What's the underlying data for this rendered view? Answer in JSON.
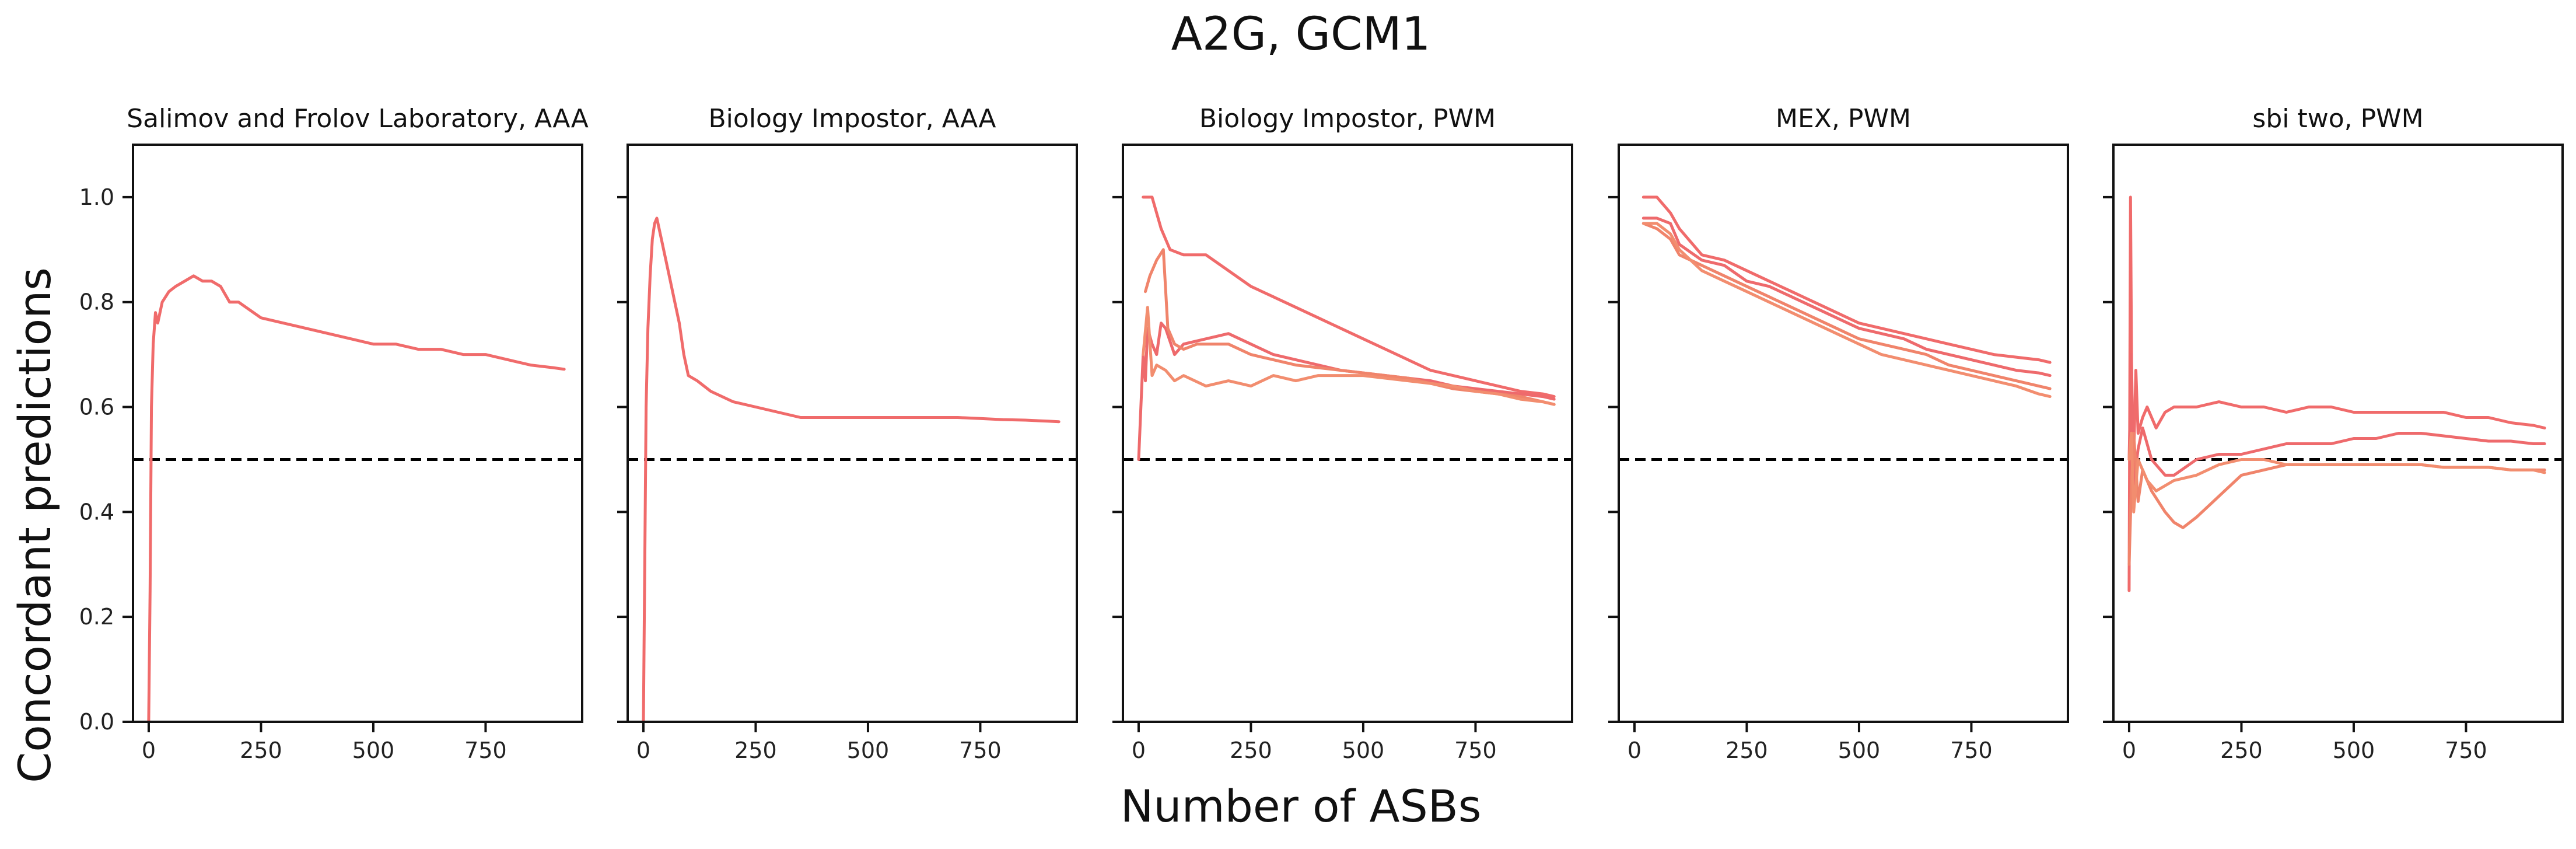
{
  "figure": {
    "title": "A2G, GCM1",
    "xlabel": "Number of ASBs",
    "ylabel": "Concordant predictions"
  },
  "colors": {
    "series": [
      "#f06b6b",
      "#ee6a6c",
      "#f0846b",
      "#f28d6f"
    ],
    "reference_line": "#000000",
    "frame": "#111111"
  },
  "chart_data": [
    {
      "type": "line",
      "title": "Salimov and Frolov Laboratory, AAA",
      "xlim": [
        -35,
        965
      ],
      "ylim": [
        0.0,
        1.1
      ],
      "xticks": [
        0,
        250,
        500,
        750
      ],
      "yticks": [
        0.0,
        0.2,
        0.4,
        0.6,
        0.8,
        1.0
      ],
      "reference_line": 0.5,
      "series": [
        {
          "x": [
            0,
            3,
            6,
            10,
            15,
            20,
            30,
            45,
            60,
            80,
            100,
            120,
            140,
            160,
            180,
            200,
            250,
            300,
            350,
            400,
            450,
            500,
            550,
            600,
            650,
            700,
            750,
            800,
            850,
            900,
            925
          ],
          "y": [
            0.0,
            0.25,
            0.6,
            0.72,
            0.78,
            0.76,
            0.8,
            0.82,
            0.83,
            0.84,
            0.85,
            0.84,
            0.84,
            0.83,
            0.8,
            0.8,
            0.77,
            0.76,
            0.75,
            0.74,
            0.73,
            0.72,
            0.72,
            0.71,
            0.71,
            0.7,
            0.7,
            0.69,
            0.68,
            0.675,
            0.672
          ]
        }
      ]
    },
    {
      "type": "line",
      "title": "Biology Impostor, AAA",
      "xlim": [
        -35,
        965
      ],
      "ylim": [
        0.0,
        1.1
      ],
      "xticks": [
        0,
        250,
        500,
        750
      ],
      "yticks": [
        0.0,
        0.2,
        0.4,
        0.6,
        0.8,
        1.0
      ],
      "reference_line": 0.5,
      "series": [
        {
          "x": [
            0,
            3,
            6,
            10,
            15,
            20,
            25,
            30,
            40,
            50,
            60,
            70,
            80,
            90,
            100,
            120,
            150,
            200,
            250,
            300,
            350,
            400,
            450,
            500,
            550,
            600,
            650,
            700,
            750,
            800,
            850,
            900,
            925
          ],
          "y": [
            0.0,
            0.3,
            0.6,
            0.75,
            0.85,
            0.92,
            0.95,
            0.96,
            0.92,
            0.88,
            0.84,
            0.8,
            0.76,
            0.7,
            0.66,
            0.65,
            0.63,
            0.61,
            0.6,
            0.59,
            0.58,
            0.58,
            0.58,
            0.58,
            0.58,
            0.58,
            0.58,
            0.58,
            0.578,
            0.576,
            0.575,
            0.573,
            0.572
          ]
        }
      ]
    },
    {
      "type": "line",
      "title": "Biology Impostor, PWM",
      "xlim": [
        -35,
        965
      ],
      "ylim": [
        0.0,
        1.1
      ],
      "xticks": [
        0,
        250,
        500,
        750
      ],
      "yticks": [
        0.0,
        0.2,
        0.4,
        0.6,
        0.8,
        1.0
      ],
      "reference_line": 0.5,
      "series": [
        {
          "x": [
            10,
            30,
            50,
            70,
            100,
            150,
            200,
            250,
            300,
            350,
            400,
            450,
            500,
            550,
            600,
            650,
            700,
            750,
            800,
            850,
            900,
            925
          ],
          "y": [
            1.0,
            1.0,
            0.94,
            0.9,
            0.89,
            0.89,
            0.86,
            0.83,
            0.81,
            0.79,
            0.77,
            0.75,
            0.73,
            0.71,
            0.69,
            0.67,
            0.66,
            0.65,
            0.64,
            0.63,
            0.625,
            0.62
          ]
        },
        {
          "x": [
            0,
            5,
            10,
            15,
            20,
            30,
            40,
            50,
            60,
            80,
            100,
            150,
            200,
            250,
            300,
            350,
            400,
            450,
            500,
            550,
            600,
            650,
            700,
            750,
            800,
            850,
            900,
            925
          ],
          "y": [
            0.5,
            0.6,
            0.7,
            0.65,
            0.75,
            0.72,
            0.7,
            0.76,
            0.75,
            0.7,
            0.72,
            0.73,
            0.74,
            0.72,
            0.7,
            0.69,
            0.68,
            0.67,
            0.665,
            0.66,
            0.655,
            0.65,
            0.64,
            0.635,
            0.63,
            0.625,
            0.62,
            0.615
          ]
        },
        {
          "x": [
            15,
            25,
            40,
            55,
            65,
            80,
            100,
            130,
            160,
            200,
            250,
            300,
            350,
            400,
            450,
            500,
            550,
            600,
            650,
            700,
            750,
            800,
            850,
            900,
            925
          ],
          "y": [
            0.82,
            0.85,
            0.88,
            0.9,
            0.75,
            0.72,
            0.71,
            0.72,
            0.72,
            0.72,
            0.7,
            0.69,
            0.68,
            0.675,
            0.67,
            0.665,
            0.66,
            0.655,
            0.645,
            0.635,
            0.63,
            0.625,
            0.62,
            0.61,
            0.605
          ]
        },
        {
          "x": [
            10,
            20,
            30,
            40,
            60,
            80,
            100,
            150,
            200,
            250,
            300,
            350,
            400,
            450,
            500,
            550,
            600,
            650,
            700,
            750,
            800,
            850,
            900,
            925
          ],
          "y": [
            0.7,
            0.79,
            0.66,
            0.68,
            0.67,
            0.65,
            0.66,
            0.64,
            0.65,
            0.64,
            0.66,
            0.65,
            0.66,
            0.66,
            0.66,
            0.655,
            0.65,
            0.645,
            0.64,
            0.63,
            0.625,
            0.615,
            0.61,
            0.605
          ]
        }
      ]
    },
    {
      "type": "line",
      "title": "MEX, PWM",
      "xlim": [
        -35,
        965
      ],
      "ylim": [
        0.0,
        1.1
      ],
      "xticks": [
        0,
        250,
        500,
        750
      ],
      "yticks": [
        0.0,
        0.2,
        0.4,
        0.6,
        0.8,
        1.0
      ],
      "reference_line": 0.5,
      "series": [
        {
          "x": [
            20,
            50,
            80,
            100,
            150,
            200,
            250,
            300,
            350,
            400,
            450,
            500,
            550,
            600,
            650,
            700,
            750,
            800,
            850,
            900,
            925
          ],
          "y": [
            1.0,
            1.0,
            0.97,
            0.94,
            0.89,
            0.88,
            0.86,
            0.84,
            0.82,
            0.8,
            0.78,
            0.76,
            0.75,
            0.74,
            0.73,
            0.72,
            0.71,
            0.7,
            0.695,
            0.69,
            0.685
          ]
        },
        {
          "x": [
            20,
            50,
            80,
            100,
            150,
            200,
            250,
            300,
            350,
            400,
            450,
            500,
            550,
            600,
            650,
            700,
            750,
            800,
            850,
            900,
            925
          ],
          "y": [
            0.96,
            0.96,
            0.95,
            0.91,
            0.88,
            0.87,
            0.84,
            0.83,
            0.81,
            0.79,
            0.77,
            0.75,
            0.74,
            0.73,
            0.71,
            0.7,
            0.69,
            0.68,
            0.67,
            0.665,
            0.66
          ]
        },
        {
          "x": [
            20,
            50,
            80,
            100,
            150,
            200,
            250,
            300,
            350,
            400,
            450,
            500,
            550,
            600,
            650,
            700,
            750,
            800,
            850,
            900,
            925
          ],
          "y": [
            0.95,
            0.94,
            0.92,
            0.89,
            0.87,
            0.85,
            0.83,
            0.81,
            0.79,
            0.77,
            0.75,
            0.73,
            0.72,
            0.71,
            0.7,
            0.68,
            0.67,
            0.66,
            0.65,
            0.64,
            0.635
          ]
        },
        {
          "x": [
            20,
            50,
            80,
            100,
            150,
            200,
            250,
            300,
            350,
            400,
            450,
            500,
            550,
            600,
            650,
            700,
            750,
            800,
            850,
            900,
            925
          ],
          "y": [
            0.95,
            0.95,
            0.93,
            0.9,
            0.86,
            0.84,
            0.82,
            0.8,
            0.78,
            0.76,
            0.74,
            0.72,
            0.7,
            0.69,
            0.68,
            0.67,
            0.66,
            0.65,
            0.64,
            0.625,
            0.62
          ]
        }
      ]
    },
    {
      "type": "line",
      "title": "sbi two, PWM",
      "xlim": [
        -35,
        965
      ],
      "ylim": [
        0.0,
        1.1
      ],
      "xticks": [
        0,
        250,
        500,
        750
      ],
      "yticks": [
        0.0,
        0.2,
        0.4,
        0.6,
        0.8,
        1.0
      ],
      "reference_line": 0.5,
      "series": [
        {
          "x": [
            0,
            3,
            6,
            10,
            15,
            20,
            30,
            40,
            60,
            80,
            100,
            150,
            200,
            250,
            300,
            350,
            400,
            450,
            500,
            550,
            600,
            650,
            700,
            750,
            800,
            850,
            900,
            925
          ],
          "y": [
            0.25,
            1.0,
            0.6,
            0.5,
            0.67,
            0.55,
            0.58,
            0.6,
            0.56,
            0.59,
            0.6,
            0.6,
            0.61,
            0.6,
            0.6,
            0.59,
            0.6,
            0.6,
            0.59,
            0.59,
            0.59,
            0.59,
            0.59,
            0.58,
            0.58,
            0.57,
            0.565,
            0.56
          ]
        },
        {
          "x": [
            0,
            5,
            10,
            20,
            30,
            50,
            80,
            100,
            150,
            200,
            250,
            300,
            350,
            400,
            450,
            500,
            550,
            600,
            650,
            700,
            750,
            800,
            850,
            900,
            925
          ],
          "y": [
            0.5,
            0.7,
            0.45,
            0.52,
            0.56,
            0.5,
            0.47,
            0.47,
            0.5,
            0.51,
            0.51,
            0.52,
            0.53,
            0.53,
            0.53,
            0.54,
            0.54,
            0.55,
            0.55,
            0.545,
            0.54,
            0.535,
            0.535,
            0.53,
            0.53
          ]
        },
        {
          "x": [
            0,
            5,
            10,
            20,
            30,
            50,
            80,
            100,
            120,
            150,
            200,
            250,
            300,
            350,
            400,
            450,
            500,
            550,
            600,
            650,
            700,
            750,
            800,
            850,
            900,
            925
          ],
          "y": [
            0.3,
            0.45,
            0.55,
            0.42,
            0.48,
            0.44,
            0.4,
            0.38,
            0.37,
            0.39,
            0.43,
            0.47,
            0.48,
            0.49,
            0.49,
            0.49,
            0.49,
            0.49,
            0.49,
            0.49,
            0.485,
            0.485,
            0.485,
            0.48,
            0.48,
            0.48
          ]
        },
        {
          "x": [
            0,
            5,
            10,
            20,
            40,
            60,
            80,
            100,
            150,
            200,
            250,
            300,
            350,
            400,
            450,
            500,
            550,
            600,
            650,
            700,
            750,
            800,
            850,
            900,
            925
          ],
          "y": [
            0.5,
            0.55,
            0.4,
            0.5,
            0.46,
            0.44,
            0.45,
            0.46,
            0.47,
            0.49,
            0.5,
            0.5,
            0.49,
            0.49,
            0.49,
            0.49,
            0.49,
            0.49,
            0.49,
            0.485,
            0.485,
            0.485,
            0.48,
            0.48,
            0.475
          ]
        }
      ]
    }
  ]
}
